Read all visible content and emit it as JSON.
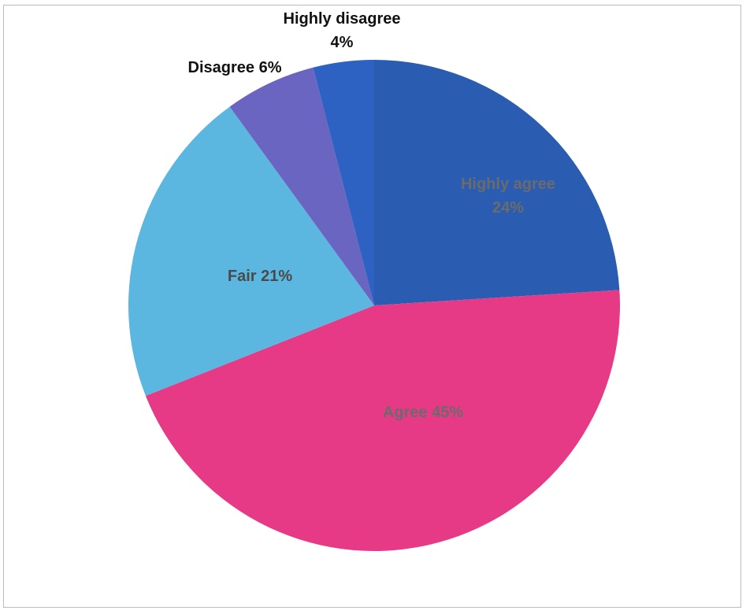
{
  "chart_data": {
    "type": "pie",
    "title": "",
    "slices": [
      {
        "name": "Highly agree",
        "value": 24,
        "label_line1": "Highly agree",
        "label_line2": "24%",
        "color": "#2a5db2",
        "label_color": "#6b6b6b"
      },
      {
        "name": "Agree",
        "value": 45,
        "label_line1": "Agree 45%",
        "color": "#e63a86",
        "label_color": "#6b6b6b"
      },
      {
        "name": "Fair",
        "value": 21,
        "label_line1": "Fair 21%",
        "color": "#5bb7e0",
        "label_color": "#4a4a4a"
      },
      {
        "name": "Disagree",
        "value": 6,
        "label_line1": "Disagree 6%",
        "color": "#6a65c0",
        "label_color": "#111111"
      },
      {
        "name": "Highly disagree",
        "value": 4,
        "label_line1": "Highly disagree",
        "label_line2": "4%",
        "color": "#2e62c2",
        "label_color": "#111111"
      }
    ],
    "legend": "none"
  }
}
